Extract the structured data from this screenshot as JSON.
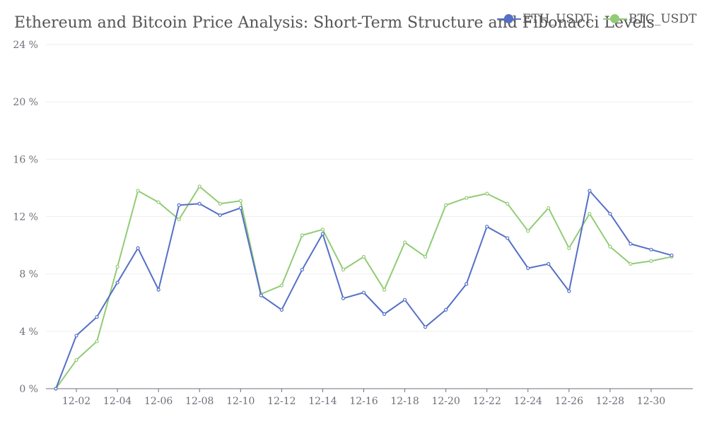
{
  "chart_data": {
    "type": "line",
    "title": "Ethereum and Bitcoin Price Analysis: Short-Term Structure and Fibonacci Levels",
    "y_axis": {
      "min": 0,
      "max": 24,
      "ticks": [
        "0 %",
        "4 %",
        "8 %",
        "12 %",
        "16 %",
        "20 %",
        "24 %"
      ]
    },
    "x_tick_labels": [
      "12-02",
      "12-04",
      "12-06",
      "12-08",
      "12-10",
      "12-12",
      "12-14",
      "12-16",
      "12-18",
      "12-20",
      "12-22",
      "12-24",
      "12-26",
      "12-28",
      "12-30"
    ],
    "x": [
      "12-01",
      "12-02",
      "12-03",
      "12-04",
      "12-05",
      "12-06",
      "12-07",
      "12-08",
      "12-09",
      "12-10",
      "12-11",
      "12-12",
      "12-13",
      "12-14",
      "12-15",
      "12-16",
      "12-17",
      "12-18",
      "12-19",
      "12-20",
      "12-21",
      "12-22",
      "12-23",
      "12-24",
      "12-25",
      "12-26",
      "12-27",
      "12-28",
      "12-29",
      "12-30",
      "12-31"
    ],
    "series": [
      {
        "name": "ETH_USDT",
        "color": "#5470c6",
        "values": [
          0,
          3.7,
          5.0,
          7.4,
          9.8,
          6.9,
          12.8,
          12.9,
          12.1,
          12.6,
          6.5,
          5.5,
          8.3,
          10.8,
          6.3,
          6.7,
          5.2,
          6.2,
          4.3,
          5.5,
          7.3,
          11.3,
          10.5,
          8.4,
          8.7,
          6.8,
          13.8,
          12.2,
          10.1,
          9.7,
          9.3
        ]
      },
      {
        "name": "BTC_USDT",
        "color": "#91cc75",
        "values": [
          0,
          2.0,
          3.3,
          8.5,
          13.8,
          13.0,
          11.8,
          14.1,
          12.9,
          13.1,
          6.6,
          7.2,
          10.7,
          11.1,
          8.3,
          9.2,
          6.9,
          10.2,
          9.2,
          12.8,
          13.3,
          13.6,
          12.9,
          11.0,
          12.6,
          9.8,
          12.2,
          9.9,
          8.7,
          8.9,
          9.2
        ]
      }
    ],
    "legend_position": "top-right",
    "grid": true
  }
}
